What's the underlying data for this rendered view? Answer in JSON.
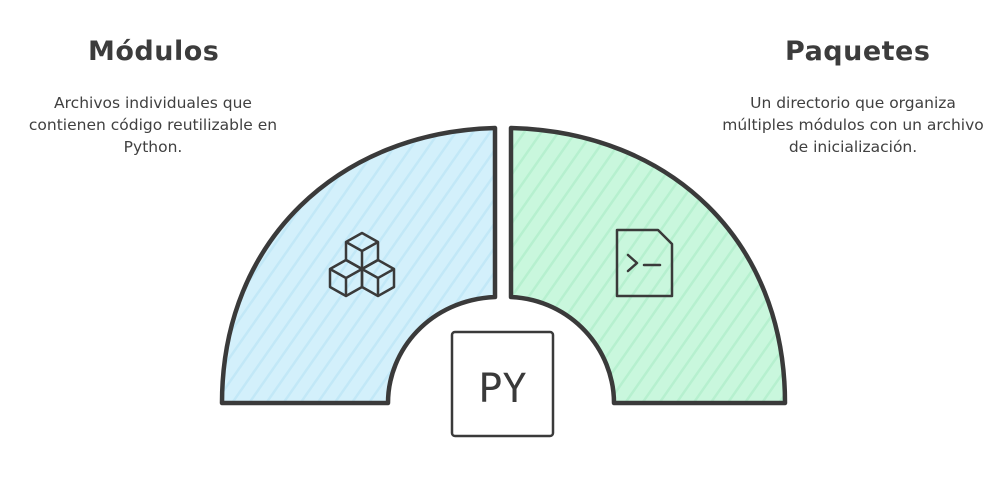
{
  "left": {
    "title": "Módulos",
    "description": "Archivos individuales que contienen código reutilizable en Python.",
    "fill_color": "#d3f0fb",
    "icon": "cubes-icon"
  },
  "right": {
    "title": "Paquetes",
    "description": "Un directorio que organiza múltiples módulos con un archivo de inicialización.",
    "fill_color": "#c9f7dd",
    "icon": "terminal-file-icon"
  },
  "center": {
    "label": "PY",
    "icon": "python-file-icon"
  },
  "stroke_color": "#3a3a3a"
}
